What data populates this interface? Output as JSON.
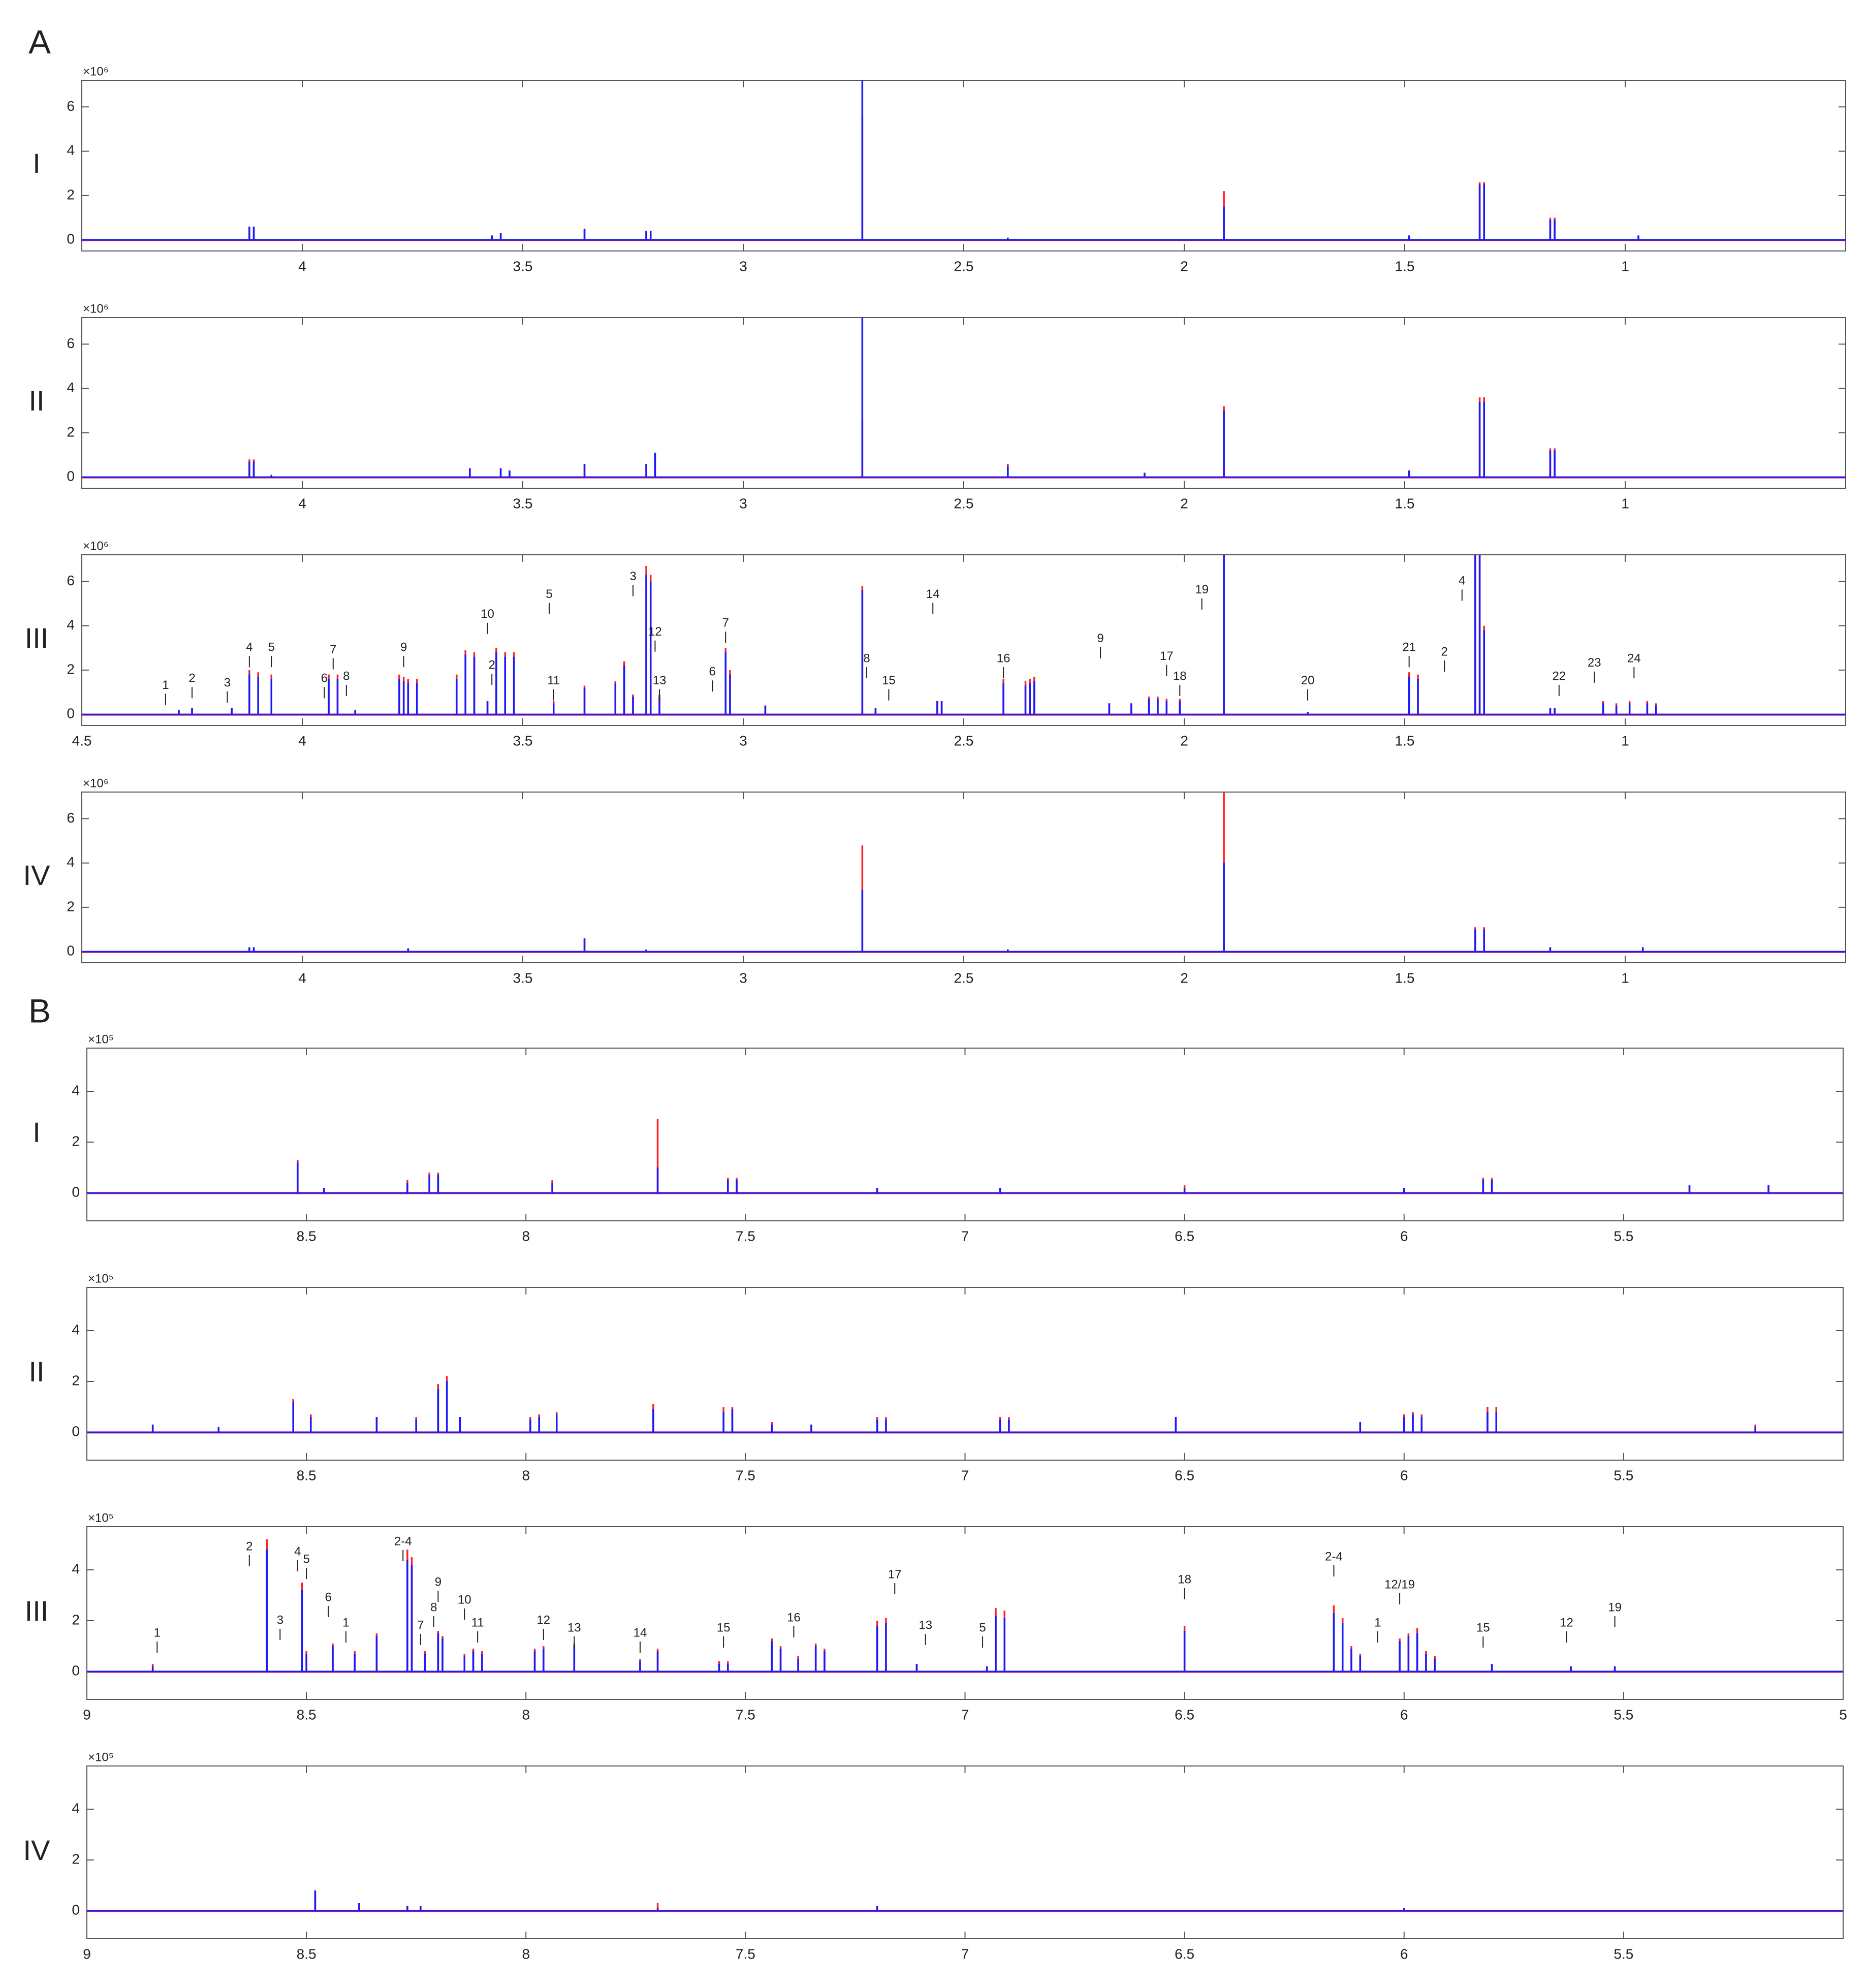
{
  "section_labels": [
    "A",
    "B"
  ],
  "chart_data": [
    {
      "type": "stem",
      "label": "I",
      "y_multiplier": "×10⁶",
      "xlim": [
        4.5,
        0.5
      ],
      "ylim": [
        -0.5,
        7.2
      ],
      "xticks": [
        4,
        3.5,
        3,
        2.5,
        2,
        1.5,
        1
      ],
      "yticks": [
        0,
        2,
        4,
        6
      ],
      "x": [
        4.12,
        4.11,
        3.57,
        3.55,
        3.36,
        3.22,
        3.21,
        2.73,
        2.4,
        1.91,
        1.49,
        1.33,
        1.32,
        1.17,
        1.16,
        0.97
      ],
      "series": [
        {
          "color": "#ff2020",
          "values": [
            0.6,
            0.6,
            0.2,
            0.3,
            0.5,
            0.4,
            0.4,
            5.5,
            0.1,
            2.2,
            0.2,
            2.6,
            2.6,
            1.0,
            1.0,
            0.2
          ]
        },
        {
          "color": "#1a1aff",
          "values": [
            0.6,
            0.6,
            0.2,
            0.3,
            0.5,
            0.4,
            0.4,
            7.2,
            0.1,
            1.5,
            0.2,
            2.5,
            2.5,
            0.9,
            0.9,
            0.2
          ]
        }
      ],
      "annotations": []
    },
    {
      "type": "stem",
      "label": "II",
      "y_multiplier": "×10⁶",
      "xlim": [
        4.5,
        0.5
      ],
      "ylim": [
        -0.5,
        7.2
      ],
      "xticks": [
        4,
        3.5,
        3,
        2.5,
        2,
        1.5,
        1
      ],
      "yticks": [
        0,
        2,
        4,
        6
      ],
      "x": [
        4.12,
        4.11,
        4.07,
        3.62,
        3.55,
        3.53,
        3.36,
        3.22,
        3.2,
        2.73,
        2.4,
        2.09,
        1.91,
        1.49,
        1.33,
        1.32,
        1.17,
        1.16
      ],
      "series": [
        {
          "color": "#ff2020",
          "values": [
            0.8,
            0.8,
            0.1,
            0.4,
            0.4,
            0.3,
            0.6,
            0.6,
            1.1,
            2.6,
            0.6,
            0.2,
            3.2,
            0.3,
            3.6,
            3.6,
            1.3,
            1.3
          ]
        },
        {
          "color": "#1a1aff",
          "values": [
            0.7,
            0.7,
            0.1,
            0.4,
            0.4,
            0.3,
            0.6,
            0.6,
            1.1,
            7.2,
            0.5,
            0.2,
            3.0,
            0.3,
            3.4,
            3.4,
            1.2,
            1.2
          ]
        }
      ],
      "annotations": []
    },
    {
      "type": "stem",
      "label": "III",
      "y_multiplier": "×10⁶",
      "xlim": [
        4.5,
        0.5
      ],
      "ylim": [
        -0.5,
        7.2
      ],
      "xticks": [
        4.5,
        4,
        3.5,
        3,
        2.5,
        2,
        1.5,
        1
      ],
      "yticks": [
        0,
        2,
        4,
        6
      ],
      "x": [
        4.28,
        4.25,
        4.16,
        4.12,
        4.1,
        4.07,
        3.94,
        3.92,
        3.88,
        3.78,
        3.77,
        3.76,
        3.74,
        3.65,
        3.63,
        3.61,
        3.58,
        3.56,
        3.54,
        3.52,
        3.43,
        3.36,
        3.29,
        3.27,
        3.25,
        3.22,
        3.21,
        3.19,
        3.04,
        3.03,
        2.95,
        2.73,
        2.7,
        2.56,
        2.55,
        2.41,
        2.36,
        2.35,
        2.34,
        2.17,
        2.12,
        2.08,
        2.06,
        2.04,
        2.01,
        1.91,
        1.72,
        1.49,
        1.47,
        1.34,
        1.33,
        1.32,
        1.17,
        1.16,
        1.05,
        1.02,
        0.99,
        0.95,
        0.93
      ],
      "series": [
        {
          "color": "#ff2020",
          "values": [
            0.2,
            0.3,
            0.3,
            2.0,
            1.9,
            1.8,
            1.8,
            1.8,
            0.2,
            1.8,
            1.7,
            1.6,
            1.6,
            1.8,
            2.9,
            2.8,
            0.6,
            3.0,
            2.8,
            2.8,
            0.6,
            1.3,
            1.5,
            2.4,
            0.9,
            6.7,
            6.3,
            0.9,
            3.0,
            2.0,
            0.4,
            5.8,
            0.3,
            0.6,
            0.6,
            1.6,
            1.5,
            1.6,
            1.7,
            0.5,
            0.5,
            0.8,
            0.8,
            0.7,
            0.7,
            7.2,
            0.1,
            1.9,
            1.8,
            7.2,
            7.2,
            4.0,
            0.3,
            0.3,
            0.6,
            0.5,
            0.6,
            0.6,
            0.5
          ]
        },
        {
          "color": "#1a1aff",
          "values": [
            0.2,
            0.3,
            0.3,
            1.8,
            1.7,
            1.6,
            1.6,
            1.6,
            0.2,
            1.6,
            1.5,
            1.4,
            1.4,
            1.6,
            2.7,
            2.6,
            0.6,
            2.8,
            2.6,
            2.6,
            0.5,
            1.2,
            1.4,
            2.2,
            0.8,
            6.3,
            6.0,
            0.8,
            2.8,
            1.8,
            0.4,
            5.6,
            0.3,
            0.6,
            0.6,
            1.4,
            1.3,
            1.4,
            1.5,
            0.5,
            0.5,
            0.7,
            0.7,
            0.6,
            0.6,
            7.2,
            0.1,
            1.7,
            1.6,
            7.2,
            7.2,
            3.8,
            0.3,
            0.3,
            0.5,
            0.4,
            0.5,
            0.5,
            0.4
          ]
        }
      ],
      "annotations": [
        {
          "text": "1",
          "x": 4.31,
          "y": 1.3
        },
        {
          "text": "2",
          "x": 4.25,
          "y": 1.6
        },
        {
          "text": "3",
          "x": 4.17,
          "y": 1.4
        },
        {
          "text": "4",
          "x": 4.12,
          "y": 3.0
        },
        {
          "text": "5",
          "x": 4.07,
          "y": 3.0
        },
        {
          "text": "6",
          "x": 3.95,
          "y": 1.6
        },
        {
          "text": "7",
          "x": 3.93,
          "y": 2.9
        },
        {
          "text": "8",
          "x": 3.9,
          "y": 1.7
        },
        {
          "text": "9",
          "x": 3.77,
          "y": 3.0
        },
        {
          "text": "10",
          "x": 3.58,
          "y": 4.5
        },
        {
          "text": "5",
          "x": 3.44,
          "y": 5.4
        },
        {
          "text": "2",
          "x": 3.57,
          "y": 2.2
        },
        {
          "text": "11",
          "x": 3.43,
          "y": 1.5
        },
        {
          "text": "3",
          "x": 3.25,
          "y": 6.2
        },
        {
          "text": "12",
          "x": 3.2,
          "y": 3.7
        },
        {
          "text": "13",
          "x": 3.19,
          "y": 1.5
        },
        {
          "text": "6",
          "x": 3.07,
          "y": 1.9
        },
        {
          "text": "7",
          "x": 3.04,
          "y": 4.1
        },
        {
          "text": "8",
          "x": 2.72,
          "y": 2.5
        },
        {
          "text": "15",
          "x": 2.67,
          "y": 1.5
        },
        {
          "text": "14",
          "x": 2.57,
          "y": 5.4
        },
        {
          "text": "16",
          "x": 2.41,
          "y": 2.5
        },
        {
          "text": "9",
          "x": 2.19,
          "y": 3.4
        },
        {
          "text": "17",
          "x": 2.04,
          "y": 2.6
        },
        {
          "text": "18",
          "x": 2.01,
          "y": 1.7
        },
        {
          "text": "19",
          "x": 1.96,
          "y": 5.6
        },
        {
          "text": "20",
          "x": 1.72,
          "y": 1.5
        },
        {
          "text": "21",
          "x": 1.49,
          "y": 3.0
        },
        {
          "text": "2",
          "x": 1.41,
          "y": 2.8
        },
        {
          "text": "4",
          "x": 1.37,
          "y": 6.0
        },
        {
          "text": "22",
          "x": 1.15,
          "y": 1.7
        },
        {
          "text": "23",
          "x": 1.07,
          "y": 2.3
        },
        {
          "text": "24",
          "x": 0.98,
          "y": 2.5
        }
      ]
    },
    {
      "type": "stem",
      "label": "IV",
      "y_multiplier": "×10⁶",
      "xlim": [
        4.5,
        0.5
      ],
      "ylim": [
        -0.5,
        7.2
      ],
      "xticks": [
        4,
        3.5,
        3,
        2.5,
        2,
        1.5,
        1
      ],
      "yticks": [
        0,
        2,
        4,
        6
      ],
      "x": [
        4.12,
        4.11,
        3.76,
        3.36,
        3.22,
        2.73,
        2.4,
        1.91,
        1.34,
        1.32,
        1.17,
        0.96
      ],
      "series": [
        {
          "color": "#ff2020",
          "values": [
            0.2,
            0.2,
            0.15,
            0.6,
            0.1,
            4.8,
            0.1,
            7.2,
            1.1,
            1.1,
            0.2,
            0.2
          ]
        },
        {
          "color": "#1a1aff",
          "values": [
            0.2,
            0.2,
            0.15,
            0.6,
            0.1,
            2.8,
            0.1,
            4.0,
            1.0,
            1.0,
            0.2,
            0.2
          ]
        }
      ],
      "annotations": []
    },
    {
      "type": "stem",
      "label": "I",
      "y_multiplier": "×10⁵",
      "xlim": [
        9,
        5
      ],
      "ylim": [
        -1.1,
        5.7
      ],
      "xticks": [
        8.5,
        8,
        7.5,
        7,
        6.5,
        6,
        5.5
      ],
      "yticks": [
        0,
        2,
        4
      ],
      "x": [
        8.52,
        8.46,
        8.27,
        8.22,
        8.2,
        7.94,
        7.7,
        7.54,
        7.52,
        7.2,
        6.92,
        6.5,
        6.0,
        5.82,
        5.8,
        5.35,
        5.17
      ],
      "series": [
        {
          "color": "#ff2020",
          "values": [
            1.3,
            0.2,
            0.5,
            0.8,
            0.8,
            0.5,
            2.9,
            0.6,
            0.6,
            0.2,
            0.2,
            0.3,
            0.2,
            0.6,
            0.6,
            0.3,
            0.3
          ]
        },
        {
          "color": "#1a1aff",
          "values": [
            1.2,
            0.2,
            0.4,
            0.7,
            0.7,
            0.4,
            1.0,
            0.5,
            0.5,
            0.2,
            0.2,
            0.2,
            0.2,
            0.5,
            0.5,
            0.3,
            0.3
          ]
        }
      ],
      "annotations": []
    },
    {
      "type": "stem",
      "label": "II",
      "y_multiplier": "×10⁵",
      "xlim": [
        9,
        5
      ],
      "ylim": [
        -1.1,
        5.7
      ],
      "xticks": [
        8.5,
        8,
        7.5,
        7,
        6.5,
        6,
        5.5
      ],
      "yticks": [
        0,
        2,
        4
      ],
      "x": [
        8.85,
        8.7,
        8.53,
        8.49,
        8.34,
        8.25,
        8.2,
        8.18,
        8.15,
        7.99,
        7.97,
        7.93,
        7.71,
        7.55,
        7.53,
        7.44,
        7.35,
        7.2,
        7.18,
        6.92,
        6.9,
        6.52,
        6.1,
        6.0,
        5.98,
        5.96,
        5.81,
        5.79,
        5.2
      ],
      "series": [
        {
          "color": "#ff2020",
          "values": [
            0.3,
            0.2,
            1.3,
            0.7,
            0.6,
            0.6,
            1.9,
            2.2,
            0.6,
            0.6,
            0.7,
            0.8,
            1.1,
            1.0,
            1.0,
            0.4,
            0.3,
            0.6,
            0.6,
            0.6,
            0.6,
            0.6,
            0.4,
            0.7,
            0.8,
            0.7,
            1.0,
            1.0,
            0.3
          ]
        },
        {
          "color": "#1a1aff",
          "values": [
            0.3,
            0.2,
            1.2,
            0.6,
            0.6,
            0.5,
            1.7,
            2.0,
            0.6,
            0.5,
            0.6,
            0.7,
            0.9,
            0.8,
            0.9,
            0.3,
            0.3,
            0.5,
            0.5,
            0.5,
            0.5,
            0.6,
            0.4,
            0.6,
            0.7,
            0.6,
            0.8,
            0.8,
            0.2
          ]
        }
      ],
      "annotations": []
    },
    {
      "type": "stem",
      "label": "III",
      "y_multiplier": "×10⁵",
      "xlim": [
        9,
        5
      ],
      "ylim": [
        -1.1,
        5.7
      ],
      "xticks": [
        9,
        8.5,
        8,
        7.5,
        7,
        6.5,
        6,
        5.5,
        5
      ],
      "yticks": [
        0,
        2,
        4
      ],
      "x": [
        8.85,
        8.59,
        8.51,
        8.5,
        8.44,
        8.39,
        8.34,
        8.27,
        8.26,
        8.23,
        8.2,
        8.19,
        8.14,
        8.12,
        8.1,
        7.98,
        7.96,
        7.89,
        7.74,
        7.7,
        7.56,
        7.54,
        7.44,
        7.42,
        7.38,
        7.34,
        7.32,
        7.2,
        7.18,
        7.11,
        6.95,
        6.93,
        6.91,
        6.5,
        6.16,
        6.14,
        6.12,
        6.1,
        6.01,
        5.99,
        5.97,
        5.95,
        5.93,
        5.8,
        5.62,
        5.52
      ],
      "series": [
        {
          "color": "#ff2020",
          "values": [
            0.3,
            5.2,
            3.5,
            0.8,
            1.1,
            0.8,
            1.5,
            4.8,
            4.5,
            0.8,
            1.6,
            1.4,
            0.7,
            0.9,
            0.8,
            0.9,
            1.0,
            1.1,
            0.5,
            0.9,
            0.4,
            0.4,
            1.3,
            1.0,
            0.6,
            1.1,
            0.9,
            2.0,
            2.1,
            0.3,
            0.2,
            2.5,
            2.4,
            1.8,
            2.6,
            2.1,
            1.0,
            0.7,
            1.3,
            1.5,
            1.7,
            0.8,
            0.6,
            0.3,
            0.2,
            0.2
          ]
        },
        {
          "color": "#1a1aff",
          "values": [
            0.2,
            4.8,
            3.2,
            0.7,
            1.0,
            0.7,
            1.4,
            4.4,
            4.2,
            0.7,
            1.5,
            1.3,
            0.6,
            0.8,
            0.7,
            0.8,
            0.9,
            1.0,
            0.4,
            0.8,
            0.3,
            0.3,
            1.2,
            0.9,
            0.5,
            1.0,
            0.8,
            1.8,
            1.9,
            0.3,
            0.2,
            2.2,
            2.1,
            1.6,
            2.3,
            1.9,
            0.9,
            0.6,
            1.2,
            1.4,
            1.5,
            0.7,
            0.5,
            0.3,
            0.2,
            0.2
          ]
        }
      ],
      "annotations": [
        {
          "text": "1",
          "x": 8.84,
          "y": 1.5
        },
        {
          "text": "2",
          "x": 8.63,
          "y": 4.9
        },
        {
          "text": "3",
          "x": 8.56,
          "y": 2.0
        },
        {
          "text": "4",
          "x": 8.52,
          "y": 4.7
        },
        {
          "text": "5",
          "x": 8.5,
          "y": 4.4
        },
        {
          "text": "6",
          "x": 8.45,
          "y": 2.9
        },
        {
          "text": "1",
          "x": 8.41,
          "y": 1.9
        },
        {
          "text": "2-4",
          "x": 8.28,
          "y": 5.1
        },
        {
          "text": "7",
          "x": 8.24,
          "y": 1.8
        },
        {
          "text": "8",
          "x": 8.21,
          "y": 2.5
        },
        {
          "text": "9",
          "x": 8.2,
          "y": 3.5
        },
        {
          "text": "10",
          "x": 8.14,
          "y": 2.8
        },
        {
          "text": "11",
          "x": 8.11,
          "y": 1.9
        },
        {
          "text": "12",
          "x": 7.96,
          "y": 2.0
        },
        {
          "text": "13",
          "x": 7.89,
          "y": 1.7
        },
        {
          "text": "14",
          "x": 7.74,
          "y": 1.5
        },
        {
          "text": "15",
          "x": 7.55,
          "y": 1.7
        },
        {
          "text": "16",
          "x": 7.39,
          "y": 2.1
        },
        {
          "text": "17",
          "x": 7.16,
          "y": 3.8
        },
        {
          "text": "13",
          "x": 7.09,
          "y": 1.8
        },
        {
          "text": "5",
          "x": 6.96,
          "y": 1.7
        },
        {
          "text": "18",
          "x": 6.5,
          "y": 3.6
        },
        {
          "text": "2-4",
          "x": 6.16,
          "y": 4.5
        },
        {
          "text": "1",
          "x": 6.06,
          "y": 1.9
        },
        {
          "text": "12/19",
          "x": 6.01,
          "y": 3.4
        },
        {
          "text": "15",
          "x": 5.82,
          "y": 1.7
        },
        {
          "text": "12",
          "x": 5.63,
          "y": 1.9
        },
        {
          "text": "19",
          "x": 5.52,
          "y": 2.5
        }
      ]
    },
    {
      "type": "stem",
      "label": "IV",
      "y_multiplier": "×10⁵",
      "xlim": [
        9,
        5
      ],
      "ylim": [
        -1.1,
        5.7
      ],
      "xticks": [
        9,
        8.5,
        8,
        7.5,
        7,
        6.5,
        6,
        5.5
      ],
      "yticks": [
        0,
        2,
        4
      ],
      "x": [
        8.48,
        8.38,
        8.27,
        8.24,
        7.7,
        7.2,
        6.0
      ],
      "series": [
        {
          "color": "#ff2020",
          "values": [
            0.8,
            0.3,
            0.2,
            0.2,
            0.3,
            0.2,
            0.1
          ]
        },
        {
          "color": "#1a1aff",
          "values": [
            0.8,
            0.3,
            0.2,
            0.2,
            0.1,
            0.2,
            0.1
          ]
        }
      ],
      "annotations": []
    }
  ]
}
